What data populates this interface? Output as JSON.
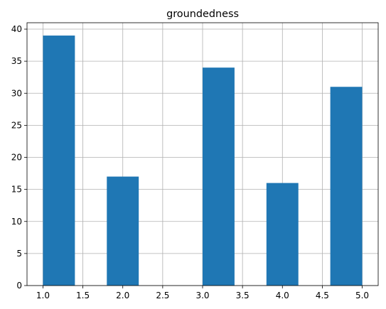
{
  "chart_data": {
    "type": "bar",
    "title": "groundedness",
    "xlabel": "",
    "ylabel": "",
    "bin_edges": [
      1.0,
      1.4,
      1.8,
      2.2,
      2.6,
      3.0,
      3.4,
      3.8,
      4.2,
      4.6,
      5.0
    ],
    "values": [
      39,
      0,
      17,
      0,
      0,
      34,
      0,
      16,
      0,
      31
    ],
    "bar_color": "#1f77b4",
    "xlim": [
      0.8,
      5.2
    ],
    "ylim": [
      0,
      41
    ],
    "x_ticks": [
      "1.0",
      "1.5",
      "2.0",
      "2.5",
      "3.0",
      "3.5",
      "4.0",
      "4.5",
      "5.0"
    ],
    "y_ticks": [
      "0",
      "5",
      "10",
      "15",
      "20",
      "25",
      "30",
      "35",
      "40"
    ],
    "grid": true
  }
}
